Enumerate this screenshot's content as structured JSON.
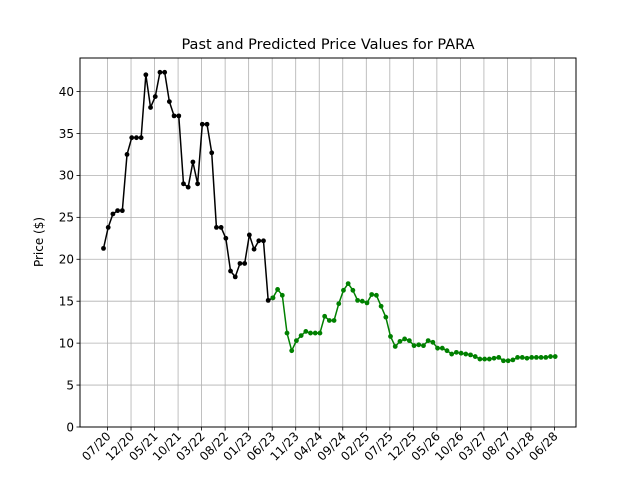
{
  "chart_data": {
    "type": "line",
    "title": "Past and Predicted Price Values for PARA",
    "xlabel": "",
    "ylabel": "Price ($)",
    "ylim": [
      0,
      44
    ],
    "yticks": [
      0,
      5,
      10,
      15,
      20,
      25,
      30,
      35,
      40
    ],
    "xtick_labels": [
      "07/20",
      "12/20",
      "05/21",
      "10/21",
      "03/22",
      "08/22",
      "01/23",
      "06/23",
      "11/23",
      "04/24",
      "09/24",
      "02/25",
      "07/25",
      "12/25",
      "05/26",
      "10/26",
      "03/27",
      "08/27",
      "01/28",
      "06/28"
    ],
    "grid": true,
    "series": [
      {
        "color": "#000000",
        "values": [
          21.3,
          23.8,
          25.4,
          25.8,
          25.8,
          32.5,
          34.5,
          34.5,
          34.5,
          42.0,
          38.1,
          39.4,
          42.3,
          42.3,
          38.8,
          37.1,
          37.1,
          29.0,
          28.6,
          31.6,
          29.0,
          36.1,
          36.1,
          32.7,
          23.8,
          23.8,
          22.5,
          18.6,
          17.9,
          19.5,
          19.5,
          22.9,
          21.2,
          22.2,
          22.2,
          15.1,
          15.4
        ]
      },
      {
        "color": "#008000",
        "values": [
          15.4,
          16.4,
          15.7,
          11.2,
          9.1,
          10.3,
          10.9,
          11.4,
          11.2,
          11.2,
          11.2,
          13.2,
          12.7,
          12.7,
          14.7,
          16.3,
          17.1,
          16.3,
          15.1,
          15.0,
          14.8,
          15.8,
          15.7,
          14.4,
          13.1,
          10.8,
          9.6,
          10.2,
          10.5,
          10.3,
          9.7,
          9.8,
          9.7,
          10.3,
          10.1,
          9.4,
          9.4,
          9.1,
          8.7,
          8.9,
          8.8,
          8.7,
          8.6,
          8.4,
          8.1,
          8.1,
          8.1,
          8.2,
          8.3,
          7.9,
          7.9,
          8.0,
          8.3,
          8.3,
          8.2,
          8.3,
          8.3,
          8.3,
          8.3,
          8.4,
          8.4
        ]
      }
    ]
  }
}
